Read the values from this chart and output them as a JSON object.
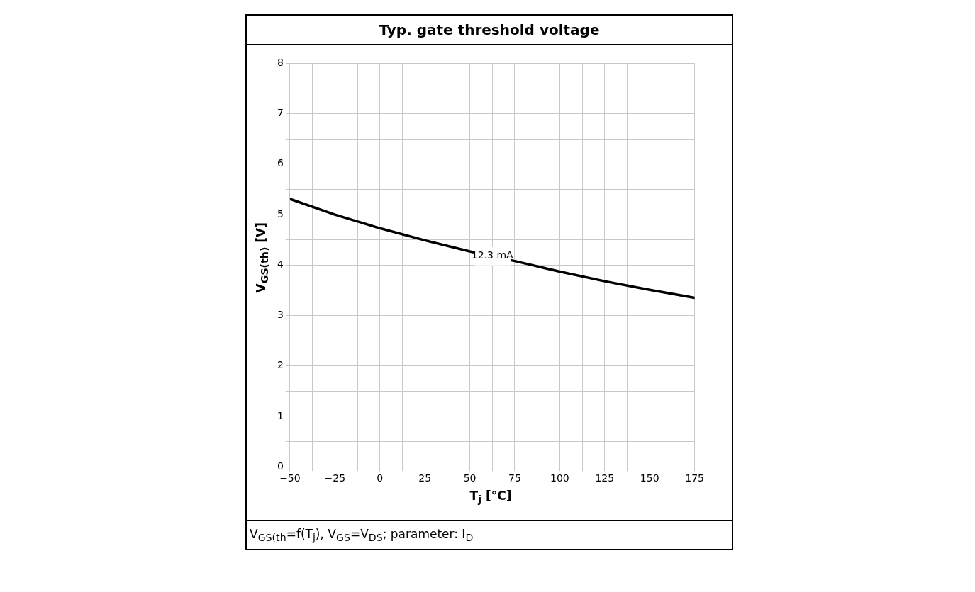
{
  "chart_data": {
    "type": "line",
    "title": "Typ. gate threshold voltage",
    "xlabel": "T$_{j}$ [°C]",
    "ylabel": "V$_{GS(th)}$ [V]",
    "annotations": [
      "V$_{GS(th}$=f(T$_{j}$), V$_{GS}$=V$_{DS}$; parameter: I$_{D}$"
    ],
    "x": [
      -50,
      -25,
      0,
      25,
      50,
      75,
      100,
      125,
      150,
      175
    ],
    "series": [
      {
        "name": "12.3 mA",
        "color": "#000000",
        "values": [
          5.31,
          5.0,
          4.73,
          4.49,
          4.27,
          4.08,
          3.87,
          3.68,
          3.51,
          3.35
        ]
      }
    ],
    "xlim": [
      -50,
      175
    ],
    "xticks": [
      -50,
      {
        "value": -37.5,
        "label": null
      },
      -25,
      {
        "value": -12.5,
        "label": null
      },
      0,
      {
        "value": 12.5,
        "label": null
      },
      25,
      {
        "value": 37.5,
        "label": null
      },
      50,
      {
        "value": 62.5,
        "label": null
      },
      75,
      {
        "value": 87.5,
        "label": null
      },
      100,
      {
        "value": 112.5,
        "label": null
      },
      125,
      {
        "value": 137.5,
        "label": null
      },
      150,
      {
        "value": 162.5,
        "label": null
      },
      175
    ],
    "ylim": [
      0,
      8
    ],
    "yticks": [
      0,
      {
        "value": 0.5,
        "label": null
      },
      1,
      {
        "value": 1.5,
        "label": null
      },
      2,
      {
        "value": 2.5,
        "label": null
      },
      3,
      {
        "value": 3.5,
        "label": null
      },
      4,
      {
        "value": 4.5,
        "label": null
      },
      5,
      {
        "value": 5.5,
        "label": null
      },
      6,
      {
        "value": 6.5,
        "label": null
      },
      7,
      {
        "value": 7.5,
        "label": null
      },
      8
    ],
    "grid": true,
    "legend": false,
    "marker": "none",
    "line_style": "solid"
  }
}
